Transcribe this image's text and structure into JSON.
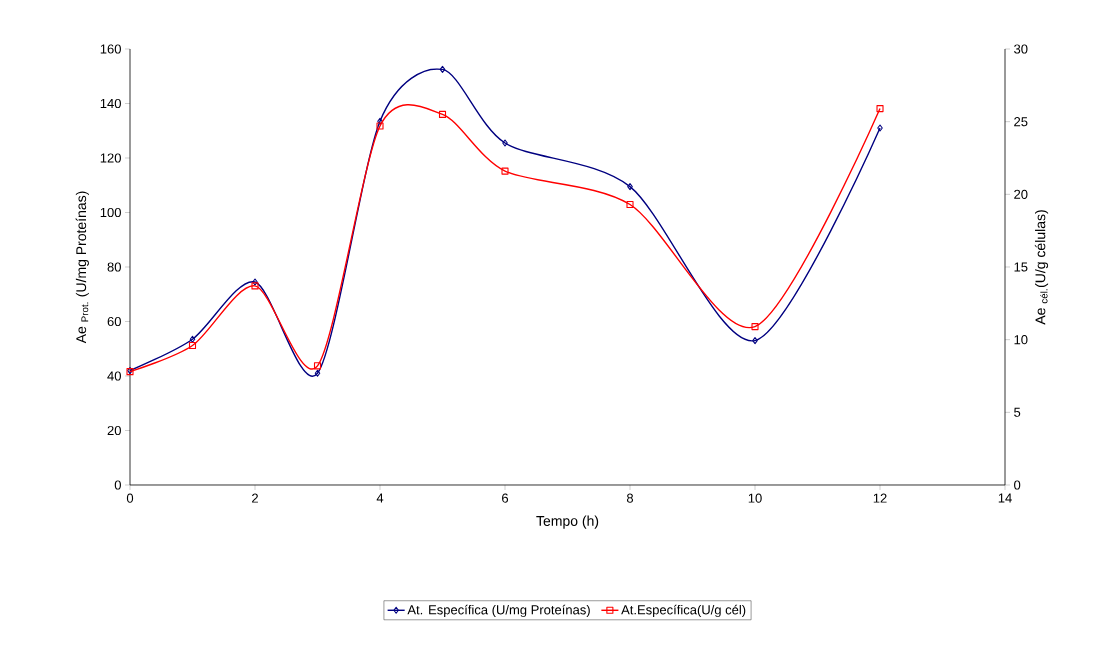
{
  "chart_data": {
    "type": "line",
    "xlabel": "Tempo (h)",
    "ylabel": "Ae $_{Prot.}$ (U/mg Proteínas)",
    "y2label": "Ae $_{cél.}$(U/g células)",
    "x": [
      0,
      1,
      2,
      3,
      4,
      5,
      6,
      8,
      10,
      12
    ],
    "series": [
      {
        "name": "At. Específica (U/mg Proteínas)",
        "color": "#000080",
        "marker": "diamond",
        "values": [
          42,
          53.5,
          74.5,
          41,
          133.5,
          152.5,
          125.5,
          109.5,
          53,
          131
        ]
      },
      {
        "name": "At.Específica(U/g cél)",
        "color": "#ff0000",
        "marker": "square",
        "axis": "y2",
        "values": [
          7.8,
          9.6,
          13.7,
          8.2,
          24.7,
          25.5,
          21.6,
          19.3,
          10.9,
          25.9
        ]
      }
    ],
    "xlim": [
      0,
      14
    ],
    "ylim": [
      0,
      160
    ],
    "y2lim": [
      0,
      30
    ],
    "xticks": [
      0,
      2,
      4,
      6,
      8,
      10,
      12,
      14
    ],
    "yticks": [
      0,
      20,
      40,
      60,
      80,
      100,
      120,
      140,
      160
    ],
    "y2ticks": [
      0,
      5,
      10,
      15,
      20,
      25,
      30
    ],
    "line_style": "solid",
    "legend": "bottom"
  }
}
